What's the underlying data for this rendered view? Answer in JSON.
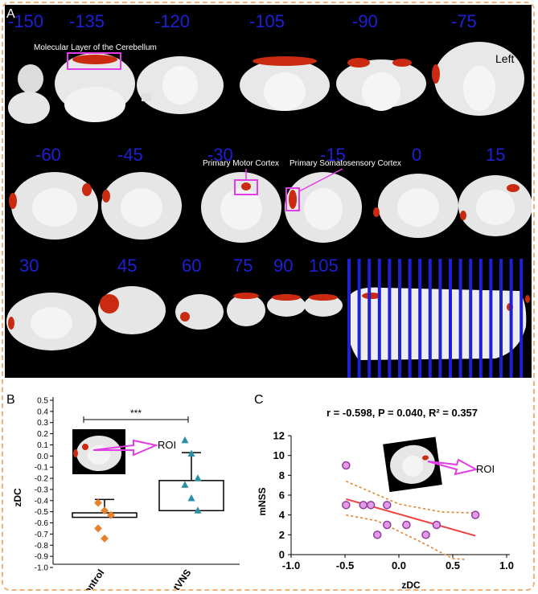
{
  "panelA": {
    "letter": "A",
    "row1": [
      "-150",
      "-135",
      "-120",
      "-105",
      "-90",
      "-75"
    ],
    "row2": [
      "-60",
      "-45",
      "-30",
      "-15",
      "0",
      "15"
    ],
    "row3": [
      "30",
      "45",
      "60",
      "75",
      "90",
      "105"
    ],
    "annot_cerebellum": "Molecular Layer of the Cerebellum",
    "annot_motor": "Primary Motor Cortex",
    "annot_somato": "Primary Somatosensory Cortex",
    "left_label": "Left",
    "colors": {
      "label": "#1f1fd6",
      "highlight": "#c92a10",
      "box": "#e23ce6",
      "bg": "#000000"
    }
  },
  "chart_data": [
    {
      "panel": "B",
      "type": "scatter",
      "ylabel": "zDC",
      "ylim": [
        -1.0,
        0.5
      ],
      "yticks": [
        "0.5",
        "0.4",
        "0.3",
        "0.2",
        "0.1",
        "0.0",
        "-0.1",
        "-0.2",
        "-0.3",
        "-0.4",
        "-0.5",
        "-0.6",
        "-0.7",
        "-0.8",
        "-0.9",
        "-1.0"
      ],
      "categories": [
        "control",
        "tVNS"
      ],
      "significance": "***",
      "roi_label": "ROI",
      "groups": [
        {
          "name": "control",
          "mean": -0.51,
          "err_low": -0.55,
          "err_high": -0.39,
          "color": "#e8812a",
          "points": [
            -0.42,
            -0.49,
            -0.53,
            -0.65,
            -0.74
          ]
        },
        {
          "name": "tVNS",
          "mean": -0.22,
          "err_low": -0.49,
          "err_high": 0.03,
          "color": "#2a8fa6",
          "points": [
            0.14,
            0.02,
            -0.2,
            -0.26,
            -0.38,
            -0.49
          ]
        }
      ]
    },
    {
      "panel": "C",
      "type": "scatter",
      "title": "r = -0.598, P = 0.040, R² = 0.357",
      "xlabel": "zDC",
      "ylabel": "mNSS",
      "xlim": [
        -1.0,
        1.0
      ],
      "ylim": [
        0,
        12
      ],
      "xticks": [
        "-1.0",
        "-0.5",
        "0.0",
        "0.5",
        "1.0"
      ],
      "yticks": [
        "0",
        "2",
        "4",
        "6",
        "8",
        "10",
        "12"
      ],
      "roi_label": "ROI",
      "points": [
        {
          "x": -0.49,
          "y": 9
        },
        {
          "x": -0.49,
          "y": 5
        },
        {
          "x": -0.33,
          "y": 5
        },
        {
          "x": -0.26,
          "y": 5
        },
        {
          "x": -0.11,
          "y": 5
        },
        {
          "x": -0.11,
          "y": 3
        },
        {
          "x": 0.07,
          "y": 3
        },
        {
          "x": 0.25,
          "y": 2
        },
        {
          "x": 0.35,
          "y": 3
        },
        {
          "x": 0.71,
          "y": 4
        },
        {
          "x": -0.2,
          "y": 2
        }
      ],
      "fit": {
        "x0": -0.49,
        "y0": 5.6,
        "x1": 0.71,
        "y1": 1.9,
        "color": "#f04040"
      },
      "ci_upper": [
        [
          -0.49,
          7.4
        ],
        [
          0.0,
          5.1
        ],
        [
          0.4,
          4.3
        ],
        [
          0.71,
          4.2
        ]
      ],
      "ci_lower": [
        [
          -0.49,
          4.0
        ],
        [
          -0.2,
          3.4
        ],
        [
          0.2,
          1.3
        ],
        [
          0.5,
          -0.4
        ],
        [
          0.62,
          -0.8
        ]
      ],
      "point_color": "#e59ae9",
      "point_edge": "#8f3e97"
    }
  ]
}
